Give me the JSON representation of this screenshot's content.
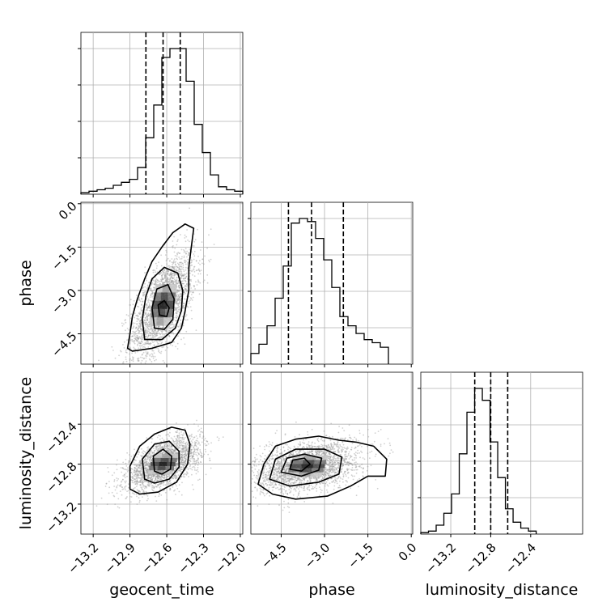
{
  "chart_data": {
    "type": "corner",
    "parameters": [
      "geocent_time",
      "phase",
      "luminosity_distance"
    ],
    "ranges": {
      "geocent_time": [
        -13.3,
        -11.98
      ],
      "phase": [
        -5.55,
        0.05
      ],
      "luminosity_distance": [
        -13.5,
        -11.88
      ]
    },
    "ticks": {
      "geocent_time": [
        "−13.2",
        "−12.9",
        "−12.6",
        "−12.3",
        "−12.0"
      ],
      "phase": [
        "−4.5",
        "−3.0",
        "−1.5",
        "0.0"
      ],
      "luminosity_distance": [
        "−13.2",
        "−12.8",
        "−12.4"
      ]
    },
    "tick_values": {
      "geocent_time": [
        -13.2,
        -12.9,
        -12.6,
        -12.3,
        -12.0
      ],
      "phase": [
        -4.5,
        -3.0,
        -1.5,
        0.0
      ],
      "luminosity_distance": [
        -13.2,
        -12.8,
        -12.4
      ]
    },
    "quantiles": {
      "geocent_time": [
        -12.77,
        -12.63,
        -12.49
      ],
      "phase": [
        -4.25,
        -3.45,
        -2.35
      ],
      "luminosity_distance": [
        -12.96,
        -12.8,
        -12.63
      ]
    },
    "histograms": {
      "geocent_time": {
        "edges_start": -13.3,
        "bin_width": 0.066,
        "counts": [
          1,
          2,
          3,
          4,
          6,
          8,
          10,
          18,
          38,
          60,
          92,
          98,
          98,
          76,
          47,
          28,
          13,
          5,
          3,
          2
        ]
      },
      "phase": {
        "edges_start": -5.55,
        "bin_width": 0.28,
        "counts": [
          7,
          13,
          25,
          43,
          64,
          92,
          95,
          93,
          82,
          68,
          50,
          31,
          25,
          20,
          16,
          14,
          11
        ]
      },
      "luminosity_distance": {
        "edges_start": -13.5,
        "bin_width": 0.077,
        "counts": [
          1,
          2,
          6,
          14,
          27,
          54,
          82,
          98,
          90,
          62,
          38,
          17,
          8,
          4,
          2
        ]
      }
    },
    "pairs": [
      {
        "x": "geocent_time",
        "y": "phase",
        "mean": [
          -12.63,
          -3.5
        ],
        "sd": [
          0.13,
          0.9
        ],
        "corr": 0.62,
        "contours": [
          [
            [
              -12.92,
              -5.0
            ],
            [
              -12.9,
              -4.5
            ],
            [
              -12.88,
              -3.9
            ],
            [
              -12.84,
              -3.3
            ],
            [
              -12.78,
              -2.6
            ],
            [
              -12.72,
              -2.0
            ],
            [
              -12.64,
              -1.5
            ],
            [
              -12.55,
              -1.0
            ],
            [
              -12.45,
              -0.7
            ],
            [
              -12.38,
              -0.85
            ],
            [
              -12.4,
              -1.5
            ],
            [
              -12.42,
              -2.2
            ],
            [
              -12.42,
              -3.0
            ],
            [
              -12.45,
              -3.7
            ],
            [
              -12.48,
              -4.3
            ],
            [
              -12.56,
              -4.8
            ],
            [
              -12.72,
              -5.0
            ],
            [
              -12.88,
              -5.1
            ]
          ],
          [
            [
              -12.78,
              -4.7
            ],
            [
              -12.8,
              -4.0
            ],
            [
              -12.77,
              -3.2
            ],
            [
              -12.72,
              -2.6
            ],
            [
              -12.62,
              -2.2
            ],
            [
              -12.51,
              -2.4
            ],
            [
              -12.47,
              -3.0
            ],
            [
              -12.48,
              -3.7
            ],
            [
              -12.53,
              -4.3
            ],
            [
              -12.64,
              -4.7
            ]
          ],
          [
            [
              -12.7,
              -4.3
            ],
            [
              -12.72,
              -3.6
            ],
            [
              -12.68,
              -2.95
            ],
            [
              -12.59,
              -2.8
            ],
            [
              -12.54,
              -3.3
            ],
            [
              -12.55,
              -4.0
            ],
            [
              -12.62,
              -4.35
            ]
          ],
          [
            [
              -12.66,
              -3.85
            ],
            [
              -12.67,
              -3.5
            ],
            [
              -12.62,
              -3.35
            ],
            [
              -12.58,
              -3.6
            ],
            [
              -12.6,
              -3.9
            ]
          ]
        ]
      },
      {
        "x": "geocent_time",
        "y": "luminosity_distance",
        "mean": [
          -12.63,
          -12.8
        ],
        "sd": [
          0.15,
          0.13
        ],
        "corr": 0.55,
        "contours": [
          [
            [
              -12.9,
              -13.05
            ],
            [
              -12.9,
              -12.82
            ],
            [
              -12.82,
              -12.62
            ],
            [
              -12.7,
              -12.5
            ],
            [
              -12.56,
              -12.43
            ],
            [
              -12.45,
              -12.46
            ],
            [
              -12.41,
              -12.6
            ],
            [
              -12.43,
              -12.8
            ],
            [
              -12.52,
              -12.98
            ],
            [
              -12.67,
              -13.08
            ],
            [
              -12.82,
              -13.1
            ]
          ],
          [
            [
              -12.78,
              -12.95
            ],
            [
              -12.8,
              -12.75
            ],
            [
              -12.7,
              -12.6
            ],
            [
              -12.58,
              -12.57
            ],
            [
              -12.5,
              -12.67
            ],
            [
              -12.5,
              -12.83
            ],
            [
              -12.58,
              -12.95
            ],
            [
              -12.7,
              -12.99
            ]
          ],
          [
            [
              -12.7,
              -12.87
            ],
            [
              -12.71,
              -12.72
            ],
            [
              -12.63,
              -12.65
            ],
            [
              -12.56,
              -12.72
            ],
            [
              -12.57,
              -12.85
            ],
            [
              -12.64,
              -12.9
            ]
          ]
        ]
      },
      {
        "x": "phase",
        "y": "luminosity_distance",
        "mean": [
          -3.6,
          -12.82
        ],
        "sd": [
          0.9,
          0.13
        ],
        "corr": 0.35,
        "contours": [
          [
            [
              -5.3,
              -13.0
            ],
            [
              -5.1,
              -12.8
            ],
            [
              -4.7,
              -12.62
            ],
            [
              -4.0,
              -12.55
            ],
            [
              -3.2,
              -12.52
            ],
            [
              -2.5,
              -12.56
            ],
            [
              -1.9,
              -12.58
            ],
            [
              -1.3,
              -12.62
            ],
            [
              -0.85,
              -12.75
            ],
            [
              -0.9,
              -12.92
            ],
            [
              -1.5,
              -12.92
            ],
            [
              -2.1,
              -13.02
            ],
            [
              -2.9,
              -13.12
            ],
            [
              -4.0,
              -13.15
            ],
            [
              -4.8,
              -13.1
            ]
          ],
          [
            [
              -4.9,
              -12.95
            ],
            [
              -4.7,
              -12.75
            ],
            [
              -4.0,
              -12.65
            ],
            [
              -3.0,
              -12.65
            ],
            [
              -2.4,
              -12.73
            ],
            [
              -2.5,
              -12.9
            ],
            [
              -3.2,
              -12.98
            ],
            [
              -4.2,
              -13.02
            ]
          ],
          [
            [
              -4.5,
              -12.88
            ],
            [
              -4.3,
              -12.74
            ],
            [
              -3.7,
              -12.7
            ],
            [
              -3.1,
              -12.74
            ],
            [
              -3.2,
              -12.86
            ],
            [
              -3.8,
              -12.92
            ]
          ],
          [
            [
              -4.2,
              -12.85
            ],
            [
              -4.1,
              -12.76
            ],
            [
              -3.7,
              -12.74
            ],
            [
              -3.5,
              -12.8
            ],
            [
              -3.8,
              -12.87
            ]
          ]
        ]
      }
    ]
  }
}
